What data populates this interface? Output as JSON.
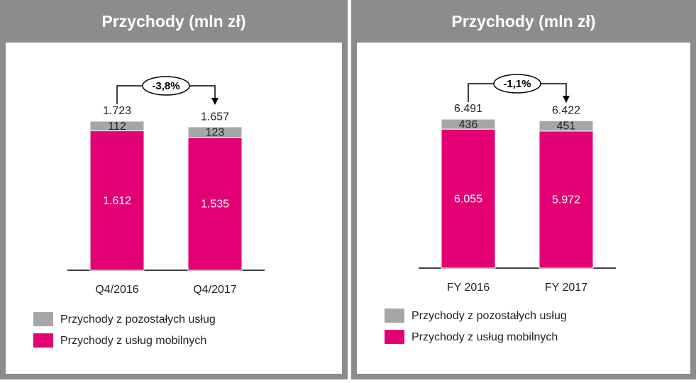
{
  "chart_data": [
    {
      "type": "stacked_bar",
      "title": "Przychody (mln zł)",
      "categories": [
        "Q4/2016",
        "Q4/2017"
      ],
      "series": [
        {
          "name": "Przychody z pozostałych usług",
          "color": "#a6a6a6",
          "values": [
            112,
            123
          ]
        },
        {
          "name": "Przychody z usług mobilnych",
          "color": "#e20074",
          "values": [
            1612,
            1535
          ],
          "value_labels": [
            "1.612",
            "1.535"
          ]
        }
      ],
      "totals": {
        "values": [
          1723,
          1657
        ],
        "value_labels": [
          "1.723",
          "1.657"
        ]
      },
      "change_label": "-3,8%"
    },
    {
      "type": "stacked_bar",
      "title": "Przychody (mln zł)",
      "categories": [
        "FY 2016",
        "FY 2017"
      ],
      "series": [
        {
          "name": "Przychody z pozostałych usług",
          "color": "#a6a6a6",
          "values": [
            436,
            451
          ]
        },
        {
          "name": "Przychody z usług mobilnych",
          "color": "#e20074",
          "values": [
            6055,
            5972
          ],
          "value_labels": [
            "6.055",
            "5.972"
          ]
        }
      ],
      "totals": {
        "values": [
          6491,
          6422
        ],
        "value_labels": [
          "6.491",
          "6.422"
        ]
      },
      "change_label": "-1,1%"
    }
  ]
}
